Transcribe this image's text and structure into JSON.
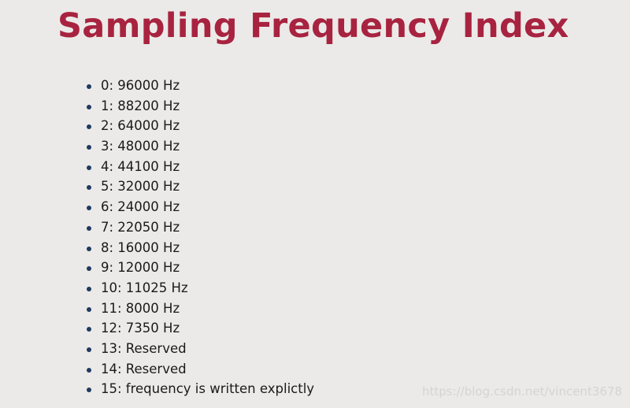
{
  "title": "Sampling Frequency Index",
  "items": [
    "0: 96000 Hz",
    "1: 88200 Hz",
    "2: 64000 Hz",
    "3: 48000 Hz",
    "4: 44100 Hz",
    "5: 32000 Hz",
    "6: 24000 Hz",
    "7: 22050 Hz",
    "8: 16000 Hz",
    "9: 12000 Hz",
    "10: 11025 Hz",
    "11: 8000 Hz",
    "12: 7350 Hz",
    "13: Reserved",
    "14: Reserved",
    "15: frequency is written explictly"
  ],
  "watermark": "https://blog.csdn.net/vincent3678"
}
